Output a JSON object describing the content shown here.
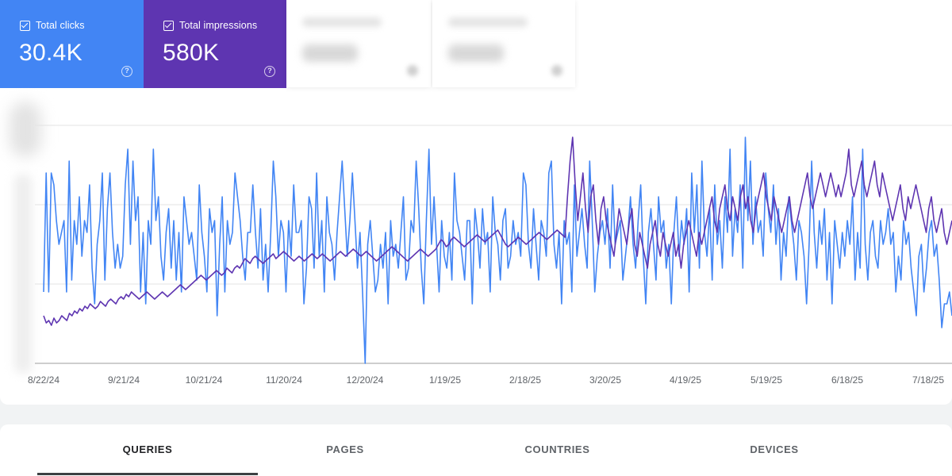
{
  "metrics": {
    "clicks": {
      "label": "Total clicks",
      "value": "30.4K",
      "color": "#4285f4",
      "checked": true
    },
    "impressions": {
      "label": "Total impressions",
      "value": "580K",
      "color": "#5e35b1",
      "checked": true
    }
  },
  "icons": {
    "checkbox": "checkbox-checked-icon",
    "help": "help-circle-icon"
  },
  "help_glyph": "?",
  "chart_data": {
    "type": "line",
    "x_tick_labels": [
      "8/22/24",
      "9/21/24",
      "10/21/24",
      "11/20/24",
      "12/20/24",
      "1/19/25",
      "2/18/25",
      "3/20/25",
      "4/19/25",
      "5/19/25",
      "6/18/25",
      "7/18/25"
    ],
    "x_start": "8/22/24",
    "x_end": "7/25/25",
    "grid": true,
    "y_axis_labels_visible": false,
    "series": [
      {
        "color": "#4285f4",
        "values": [
          0.3,
          0.8,
          0.3,
          0.8,
          0.75,
          0.6,
          0.5,
          0.55,
          0.6,
          0.3,
          0.85,
          0.35,
          0.6,
          0.5,
          0.7,
          0.45,
          0.6,
          0.55,
          0.75,
          0.4,
          0.25,
          0.5,
          0.6,
          0.8,
          0.35,
          0.65,
          0.8,
          0.55,
          0.4,
          0.5,
          0.4,
          0.45,
          0.75,
          0.9,
          0.5,
          0.85,
          0.6,
          0.7,
          0.3,
          0.55,
          0.25,
          0.6,
          0.5,
          0.9,
          0.6,
          0.7,
          0.45,
          0.35,
          0.55,
          0.65,
          0.4,
          0.6,
          0.35,
          0.55,
          0.3,
          0.7,
          0.6,
          0.5,
          0.55,
          0.45,
          0.35,
          0.75,
          0.55,
          0.45,
          0.3,
          0.65,
          0.55,
          0.6,
          0.2,
          0.5,
          0.7,
          0.3,
          0.6,
          0.5,
          0.55,
          0.8,
          0.7,
          0.6,
          0.45,
          0.35,
          0.55,
          0.55,
          0.75,
          0.55,
          0.4,
          0.65,
          0.35,
          0.5,
          0.3,
          0.55,
          0.85,
          0.7,
          0.45,
          0.6,
          0.55,
          0.3,
          0.6,
          0.45,
          0.75,
          0.55,
          0.55,
          0.6,
          0.25,
          0.4,
          0.7,
          0.65,
          0.4,
          0.8,
          0.45,
          0.6,
          0.3,
          0.7,
          0.55,
          0.5,
          0.35,
          0.55,
          0.7,
          0.85,
          0.65,
          0.45,
          0.6,
          0.8,
          0.6,
          0.4,
          0.55,
          0.3,
          0.0,
          0.5,
          0.6,
          0.45,
          0.3,
          0.35,
          0.5,
          0.4,
          0.55,
          0.25,
          0.6,
          0.45,
          0.5,
          0.4,
          0.55,
          0.7,
          0.35,
          0.4,
          0.6,
          0.55,
          0.85,
          0.65,
          0.4,
          0.25,
          0.6,
          0.9,
          0.5,
          0.7,
          0.5,
          0.3,
          0.6,
          0.45,
          0.4,
          0.55,
          0.35,
          0.8,
          0.6,
          0.55,
          0.45,
          0.35,
          0.6,
          0.6,
          0.25,
          0.65,
          0.55,
          0.4,
          0.65,
          0.5,
          0.55,
          0.3,
          0.7,
          0.55,
          0.5,
          0.35,
          0.6,
          0.65,
          0.4,
          0.45,
          0.6,
          0.5,
          0.55,
          0.45,
          0.8,
          0.75,
          0.5,
          0.4,
          0.65,
          0.5,
          0.35,
          0.6,
          0.55,
          0.45,
          0.8,
          0.85,
          0.5,
          0.4,
          0.55,
          0.25,
          0.6,
          0.5,
          0.55,
          0.3,
          0.75,
          0.45,
          0.55,
          0.65,
          0.5,
          0.4,
          0.85,
          0.6,
          0.3,
          0.45,
          0.55,
          0.6,
          0.5,
          0.65,
          0.4,
          0.75,
          0.5,
          0.55,
          0.6,
          0.35,
          0.45,
          0.55,
          0.7,
          0.5,
          0.4,
          0.6,
          0.75,
          0.45,
          0.25,
          0.55,
          0.65,
          0.5,
          0.35,
          0.7,
          0.55,
          0.6,
          0.4,
          0.5,
          0.25,
          0.55,
          0.7,
          0.45,
          0.6,
          0.5,
          0.65,
          0.3,
          0.8,
          0.55,
          0.75,
          0.4,
          0.85,
          0.55,
          0.45,
          0.65,
          0.35,
          0.75,
          0.5,
          0.6,
          0.4,
          0.7,
          0.55,
          0.9,
          0.45,
          0.65,
          0.55,
          0.75,
          0.4,
          0.95,
          0.6,
          0.85,
          0.5,
          0.7,
          0.55,
          0.6,
          0.45,
          0.8,
          0.65,
          0.55,
          0.75,
          0.5,
          0.65,
          0.35,
          0.55,
          0.45,
          0.7,
          0.6,
          0.5,
          0.35,
          0.6,
          0.55,
          0.45,
          0.25,
          0.5,
          0.85,
          0.55,
          0.4,
          0.6,
          0.5,
          0.65,
          0.35,
          0.55,
          0.25,
          0.6,
          0.5,
          0.4,
          0.55,
          0.45,
          0.6,
          0.5,
          0.7,
          0.35,
          0.55,
          0.4,
          0.9,
          0.5,
          0.35,
          0.55,
          0.6,
          0.45,
          0.4,
          0.6,
          0.5,
          0.55,
          0.65,
          0.5,
          0.55,
          0.3,
          0.45,
          0.35,
          0.6,
          0.5,
          0.55,
          0.4,
          0.3,
          0.2,
          0.45,
          0.5,
          0.3,
          0.4,
          0.55,
          0.6,
          0.45,
          0.5,
          0.35,
          0.15,
          0.25,
          0.25,
          0.3,
          0.2
        ],
        "values_note_unused": null
      },
      {
        "color": "#5e35b1",
        "values": [
          0.2,
          0.17,
          0.18,
          0.16,
          0.19,
          0.17,
          0.18,
          0.2,
          0.19,
          0.18,
          0.21,
          0.2,
          0.22,
          0.21,
          0.23,
          0.22,
          0.24,
          0.23,
          0.25,
          0.24,
          0.23,
          0.24,
          0.26,
          0.25,
          0.24,
          0.26,
          0.27,
          0.26,
          0.25,
          0.27,
          0.28,
          0.27,
          0.29,
          0.28,
          0.3,
          0.29,
          0.28,
          0.27,
          0.28,
          0.29,
          0.3,
          0.29,
          0.28,
          0.27,
          0.28,
          0.29,
          0.3,
          0.29,
          0.28,
          0.29,
          0.3,
          0.31,
          0.32,
          0.33,
          0.32,
          0.31,
          0.32,
          0.33,
          0.34,
          0.35,
          0.36,
          0.37,
          0.36,
          0.35,
          0.36,
          0.37,
          0.38,
          0.39,
          0.38,
          0.37,
          0.38,
          0.4,
          0.39,
          0.38,
          0.4,
          0.41,
          0.4,
          0.42,
          0.44,
          0.43,
          0.42,
          0.44,
          0.45,
          0.44,
          0.43,
          0.42,
          0.43,
          0.44,
          0.45,
          0.46,
          0.44,
          0.45,
          0.46,
          0.47,
          0.46,
          0.45,
          0.44,
          0.43,
          0.44,
          0.45,
          0.44,
          0.43,
          0.44,
          0.45,
          0.46,
          0.45,
          0.44,
          0.45,
          0.46,
          0.45,
          0.44,
          0.43,
          0.44,
          0.45,
          0.46,
          0.47,
          0.46,
          0.45,
          0.46,
          0.47,
          0.48,
          0.47,
          0.46,
          0.45,
          0.46,
          0.47,
          0.46,
          0.45,
          0.44,
          0.43,
          0.44,
          0.45,
          0.46,
          0.47,
          0.48,
          0.49,
          0.48,
          0.47,
          0.46,
          0.45,
          0.44,
          0.43,
          0.44,
          0.45,
          0.46,
          0.47,
          0.48,
          0.47,
          0.46,
          0.45,
          0.46,
          0.47,
          0.48,
          0.5,
          0.52,
          0.51,
          0.49,
          0.5,
          0.52,
          0.53,
          0.52,
          0.51,
          0.5,
          0.49,
          0.5,
          0.51,
          0.52,
          0.53,
          0.54,
          0.53,
          0.52,
          0.51,
          0.52,
          0.53,
          0.54,
          0.55,
          0.56,
          0.54,
          0.52,
          0.5,
          0.49,
          0.5,
          0.51,
          0.52,
          0.53,
          0.52,
          0.51,
          0.5,
          0.51,
          0.52,
          0.53,
          0.54,
          0.55,
          0.54,
          0.53,
          0.52,
          0.53,
          0.54,
          0.55,
          0.56,
          0.55,
          0.54,
          0.53,
          0.7,
          0.85,
          0.95,
          0.75,
          0.6,
          0.7,
          0.8,
          0.65,
          0.55,
          0.7,
          0.75,
          0.6,
          0.5,
          0.65,
          0.7,
          0.6,
          0.55,
          0.5,
          0.45,
          0.55,
          0.65,
          0.6,
          0.55,
          0.5,
          0.6,
          0.65,
          0.5,
          0.45,
          0.55,
          0.5,
          0.45,
          0.4,
          0.5,
          0.55,
          0.6,
          0.5,
          0.45,
          0.55,
          0.5,
          0.45,
          0.5,
          0.55,
          0.45,
          0.5,
          0.4,
          0.5,
          0.55,
          0.6,
          0.55,
          0.5,
          0.45,
          0.55,
          0.5,
          0.55,
          0.6,
          0.65,
          0.7,
          0.6,
          0.55,
          0.65,
          0.7,
          0.75,
          0.65,
          0.6,
          0.7,
          0.65,
          0.6,
          0.7,
          0.75,
          0.65,
          0.7,
          0.6,
          0.55,
          0.65,
          0.7,
          0.75,
          0.8,
          0.7,
          0.65,
          0.6,
          0.7,
          0.65,
          0.6,
          0.55,
          0.6,
          0.65,
          0.7,
          0.6,
          0.55,
          0.6,
          0.65,
          0.7,
          0.75,
          0.8,
          0.7,
          0.65,
          0.7,
          0.75,
          0.8,
          0.75,
          0.7,
          0.75,
          0.8,
          0.75,
          0.7,
          0.75,
          0.7,
          0.75,
          0.8,
          0.9,
          0.75,
          0.7,
          0.75,
          0.8,
          0.85,
          0.75,
          0.7,
          0.75,
          0.8,
          0.85,
          0.75,
          0.7,
          0.8,
          0.75,
          0.7,
          0.65,
          0.6,
          0.65,
          0.7,
          0.75,
          0.65,
          0.6,
          0.7,
          0.65,
          0.7,
          0.75,
          0.7,
          0.65,
          0.6,
          0.55,
          0.65,
          0.7,
          0.6,
          0.55,
          0.6,
          0.65,
          0.55,
          0.5,
          0.55,
          0.6
        ]
      }
    ]
  },
  "tabs": [
    {
      "label": "QUERIES",
      "active": true
    },
    {
      "label": "PAGES",
      "active": false
    },
    {
      "label": "COUNTRIES",
      "active": false
    },
    {
      "label": "DEVICES",
      "active": false
    }
  ]
}
